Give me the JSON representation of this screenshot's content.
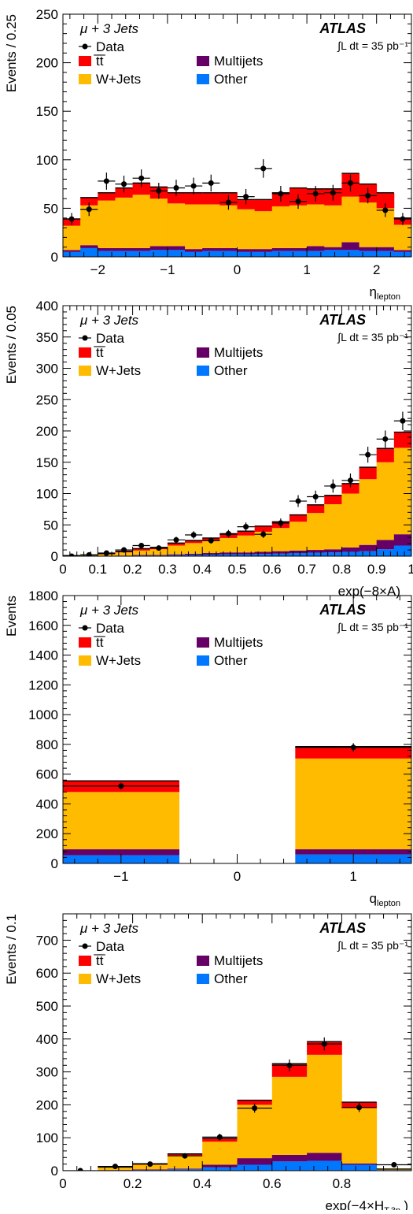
{
  "figure": {
    "panels": [
      {
        "ylabel": "Events / 0.25",
        "xlabel": "η",
        "xlabel_sub": "lepton"
      },
      {
        "ylabel": "Events / 0.05",
        "xlabel": "exp(−8×A)",
        "xlabel_sub": ""
      },
      {
        "ylabel": "Events",
        "xlabel": "q",
        "xlabel_sub": "lepton"
      },
      {
        "ylabel": "Events / 0.1",
        "xlabel": "exp(−4×H",
        "xlabel_sub": "T,3p"
      }
    ]
  },
  "legend": {
    "channel": "μ + 3 Jets",
    "experiment": "ATLAS",
    "lumi": "∫L dt = 35 pb⁻¹",
    "items": [
      {
        "key": "data",
        "label": "Data"
      },
      {
        "key": "ttbar",
        "label": "t̅t̅",
        "color": "#ff0000"
      },
      {
        "key": "multijets",
        "label": "Multijets",
        "color": "#660066"
      },
      {
        "key": "wjets",
        "label": "W+Jets",
        "color": "#ffbb00"
      },
      {
        "key": "other",
        "label": "Other",
        "color": "#0077ff"
      }
    ]
  },
  "colors": {
    "ttbar": "#ff0000",
    "multijets": "#660066",
    "wjets": "#ffbb00",
    "other": "#0077ff",
    "data": "#000000"
  },
  "chart_data": [
    {
      "type": "bar",
      "stacked": true,
      "xlim": [
        -2.5,
        2.5
      ],
      "ylim": [
        0,
        250
      ],
      "xticks": [
        -2,
        -1,
        0,
        1,
        2
      ],
      "yticks": [
        0,
        50,
        100,
        150,
        200,
        250
      ],
      "bin_edges": [
        -2.5,
        -2.25,
        -2,
        -1.75,
        -1.5,
        -1.25,
        -1,
        -0.75,
        -0.5,
        -0.25,
        0,
        0.25,
        0.5,
        0.75,
        1,
        1.25,
        1.5,
        1.75,
        2,
        2.25,
        2.5
      ],
      "series": [
        {
          "name": "Other",
          "key": "other",
          "values": [
            5,
            9,
            6,
            6,
            6,
            7,
            7,
            5,
            6,
            6,
            5,
            5,
            6,
            6,
            6,
            7,
            7,
            6,
            6,
            5
          ]
        },
        {
          "name": "Multijets",
          "key": "multijets",
          "values": [
            2,
            3,
            3,
            3,
            3,
            4,
            4,
            3,
            3,
            3,
            3,
            3,
            3,
            3,
            5,
            3,
            8,
            4,
            4,
            2
          ]
        },
        {
          "name": "W+Jets",
          "key": "wjets",
          "values": [
            25,
            41,
            49,
            52,
            55,
            49,
            44,
            46,
            45,
            44,
            41,
            39,
            43,
            44,
            43,
            43,
            47,
            46,
            40,
            26
          ]
        },
        {
          "name": "tt̅",
          "key": "ttbar",
          "values": [
            7,
            8,
            8,
            10,
            12,
            12,
            11,
            12,
            12,
            13,
            10,
            12,
            14,
            18,
            16,
            17,
            24,
            19,
            16,
            7
          ]
        }
      ],
      "data_points": {
        "x": [
          -2.375,
          -2.125,
          -1.875,
          -1.625,
          -1.375,
          -1.125,
          -0.875,
          -0.625,
          -0.375,
          -0.125,
          0.125,
          0.375,
          0.625,
          0.875,
          1.125,
          1.375,
          1.625,
          1.875,
          2.125,
          2.375
        ],
        "y": [
          39,
          49,
          78,
          75,
          81,
          68,
          71,
          73,
          76,
          56,
          62,
          91,
          65,
          57,
          65,
          66,
          76,
          63,
          48,
          39
        ]
      }
    },
    {
      "type": "bar",
      "stacked": true,
      "xlim": [
        0,
        1
      ],
      "ylim": [
        0,
        400
      ],
      "xticks": [
        0,
        0.1,
        0.2,
        0.3,
        0.4,
        0.5,
        0.6,
        0.7,
        0.8,
        0.9,
        1
      ],
      "yticks": [
        0,
        50,
        100,
        150,
        200,
        250,
        300,
        350,
        400
      ],
      "bin_edges": [
        0,
        0.05,
        0.1,
        0.15,
        0.2,
        0.25,
        0.3,
        0.35,
        0.4,
        0.45,
        0.5,
        0.55,
        0.6,
        0.65,
        0.7,
        0.75,
        0.8,
        0.85,
        0.9,
        0.95,
        1
      ],
      "series": [
        {
          "name": "Other",
          "key": "other",
          "values": [
            0,
            0,
            0,
            0.5,
            1,
            1,
            1.5,
            2,
            2.5,
            3,
            3,
            3.5,
            4,
            5,
            5.5,
            6,
            7,
            8,
            11,
            17
          ]
        },
        {
          "name": "Multijets",
          "key": "multijets",
          "values": [
            0,
            0,
            0,
            0.5,
            1,
            1,
            1.5,
            2,
            2.5,
            3,
            3,
            3.5,
            4,
            4,
            4.5,
            5,
            7,
            10,
            15,
            18
          ]
        },
        {
          "name": "W+Jets",
          "key": "wjets",
          "values": [
            1,
            2,
            3,
            5,
            7,
            9,
            14,
            17,
            19,
            23,
            27,
            32,
            37,
            46,
            59,
            72,
            86,
            105,
            124,
            138
          ]
        },
        {
          "name": "tt̅",
          "key": "ttbar",
          "values": [
            0,
            0,
            1,
            2,
            3,
            3,
            4,
            4,
            5,
            6,
            7,
            9,
            10,
            11,
            13,
            14,
            16,
            19,
            22,
            25
          ]
        }
      ],
      "data_points": {
        "x": [
          0.025,
          0.075,
          0.125,
          0.175,
          0.225,
          0.275,
          0.325,
          0.375,
          0.425,
          0.475,
          0.525,
          0.575,
          0.625,
          0.675,
          0.725,
          0.775,
          0.825,
          0.875,
          0.925,
          0.975
        ],
        "y": [
          0,
          2,
          5,
          10,
          17,
          13,
          26,
          34,
          25,
          36,
          47,
          35,
          53,
          88,
          95,
          112,
          121,
          162,
          187,
          216
        ]
      }
    },
    {
      "type": "bar",
      "stacked": true,
      "xlim": [
        -1.5,
        1.5
      ],
      "ylim": [
        0,
        1800
      ],
      "xticks": [
        -1,
        0,
        1
      ],
      "yticks": [
        0,
        200,
        400,
        600,
        800,
        1000,
        1200,
        1400,
        1600,
        1800
      ],
      "bin_edges": [
        -1.5,
        -0.5,
        0.5,
        1.5
      ],
      "series": [
        {
          "name": "Other",
          "key": "other",
          "values": [
            55,
            0,
            60
          ]
        },
        {
          "name": "Multijets",
          "key": "multijets",
          "values": [
            40,
            0,
            35
          ]
        },
        {
          "name": "W+Jets",
          "key": "wjets",
          "values": [
            385,
            0,
            610
          ]
        },
        {
          "name": "tt̅",
          "key": "ttbar",
          "values": [
            75,
            0,
            80
          ]
        }
      ],
      "data_points": {
        "x": [
          -1,
          1
        ],
        "y": [
          520,
          780
        ]
      }
    },
    {
      "type": "bar",
      "stacked": true,
      "xlim": [
        0,
        1
      ],
      "ylim": [
        0,
        780
      ],
      "xticks": [
        0,
        0.2,
        0.4,
        0.6,
        0.8
      ],
      "yticks": [
        0,
        100,
        200,
        300,
        400,
        500,
        600,
        700
      ],
      "bin_edges": [
        0,
        0.1,
        0.2,
        0.3,
        0.4,
        0.5,
        0.6,
        0.7,
        0.8,
        0.9,
        1
      ],
      "series": [
        {
          "name": "Other",
          "key": "other",
          "values": [
            0,
            1,
            2,
            4,
            10,
            18,
            28,
            30,
            18,
            2
          ]
        },
        {
          "name": "Multijets",
          "key": "multijets",
          "values": [
            0,
            1,
            2,
            2,
            8,
            20,
            20,
            24,
            4,
            0
          ]
        },
        {
          "name": "W+Jets",
          "key": "wjets",
          "values": [
            0,
            8,
            14,
            40,
            70,
            162,
            237,
            298,
            168,
            3
          ]
        },
        {
          "name": "tt̅",
          "key": "ttbar",
          "values": [
            0,
            1,
            3,
            5,
            10,
            14,
            40,
            40,
            18,
            0
          ]
        }
      ],
      "data_points": {
        "x": [
          0.05,
          0.15,
          0.25,
          0.35,
          0.45,
          0.55,
          0.65,
          0.75,
          0.85,
          0.95
        ],
        "y": [
          0,
          13,
          20,
          45,
          102,
          190,
          320,
          385,
          192,
          18
        ]
      }
    }
  ]
}
